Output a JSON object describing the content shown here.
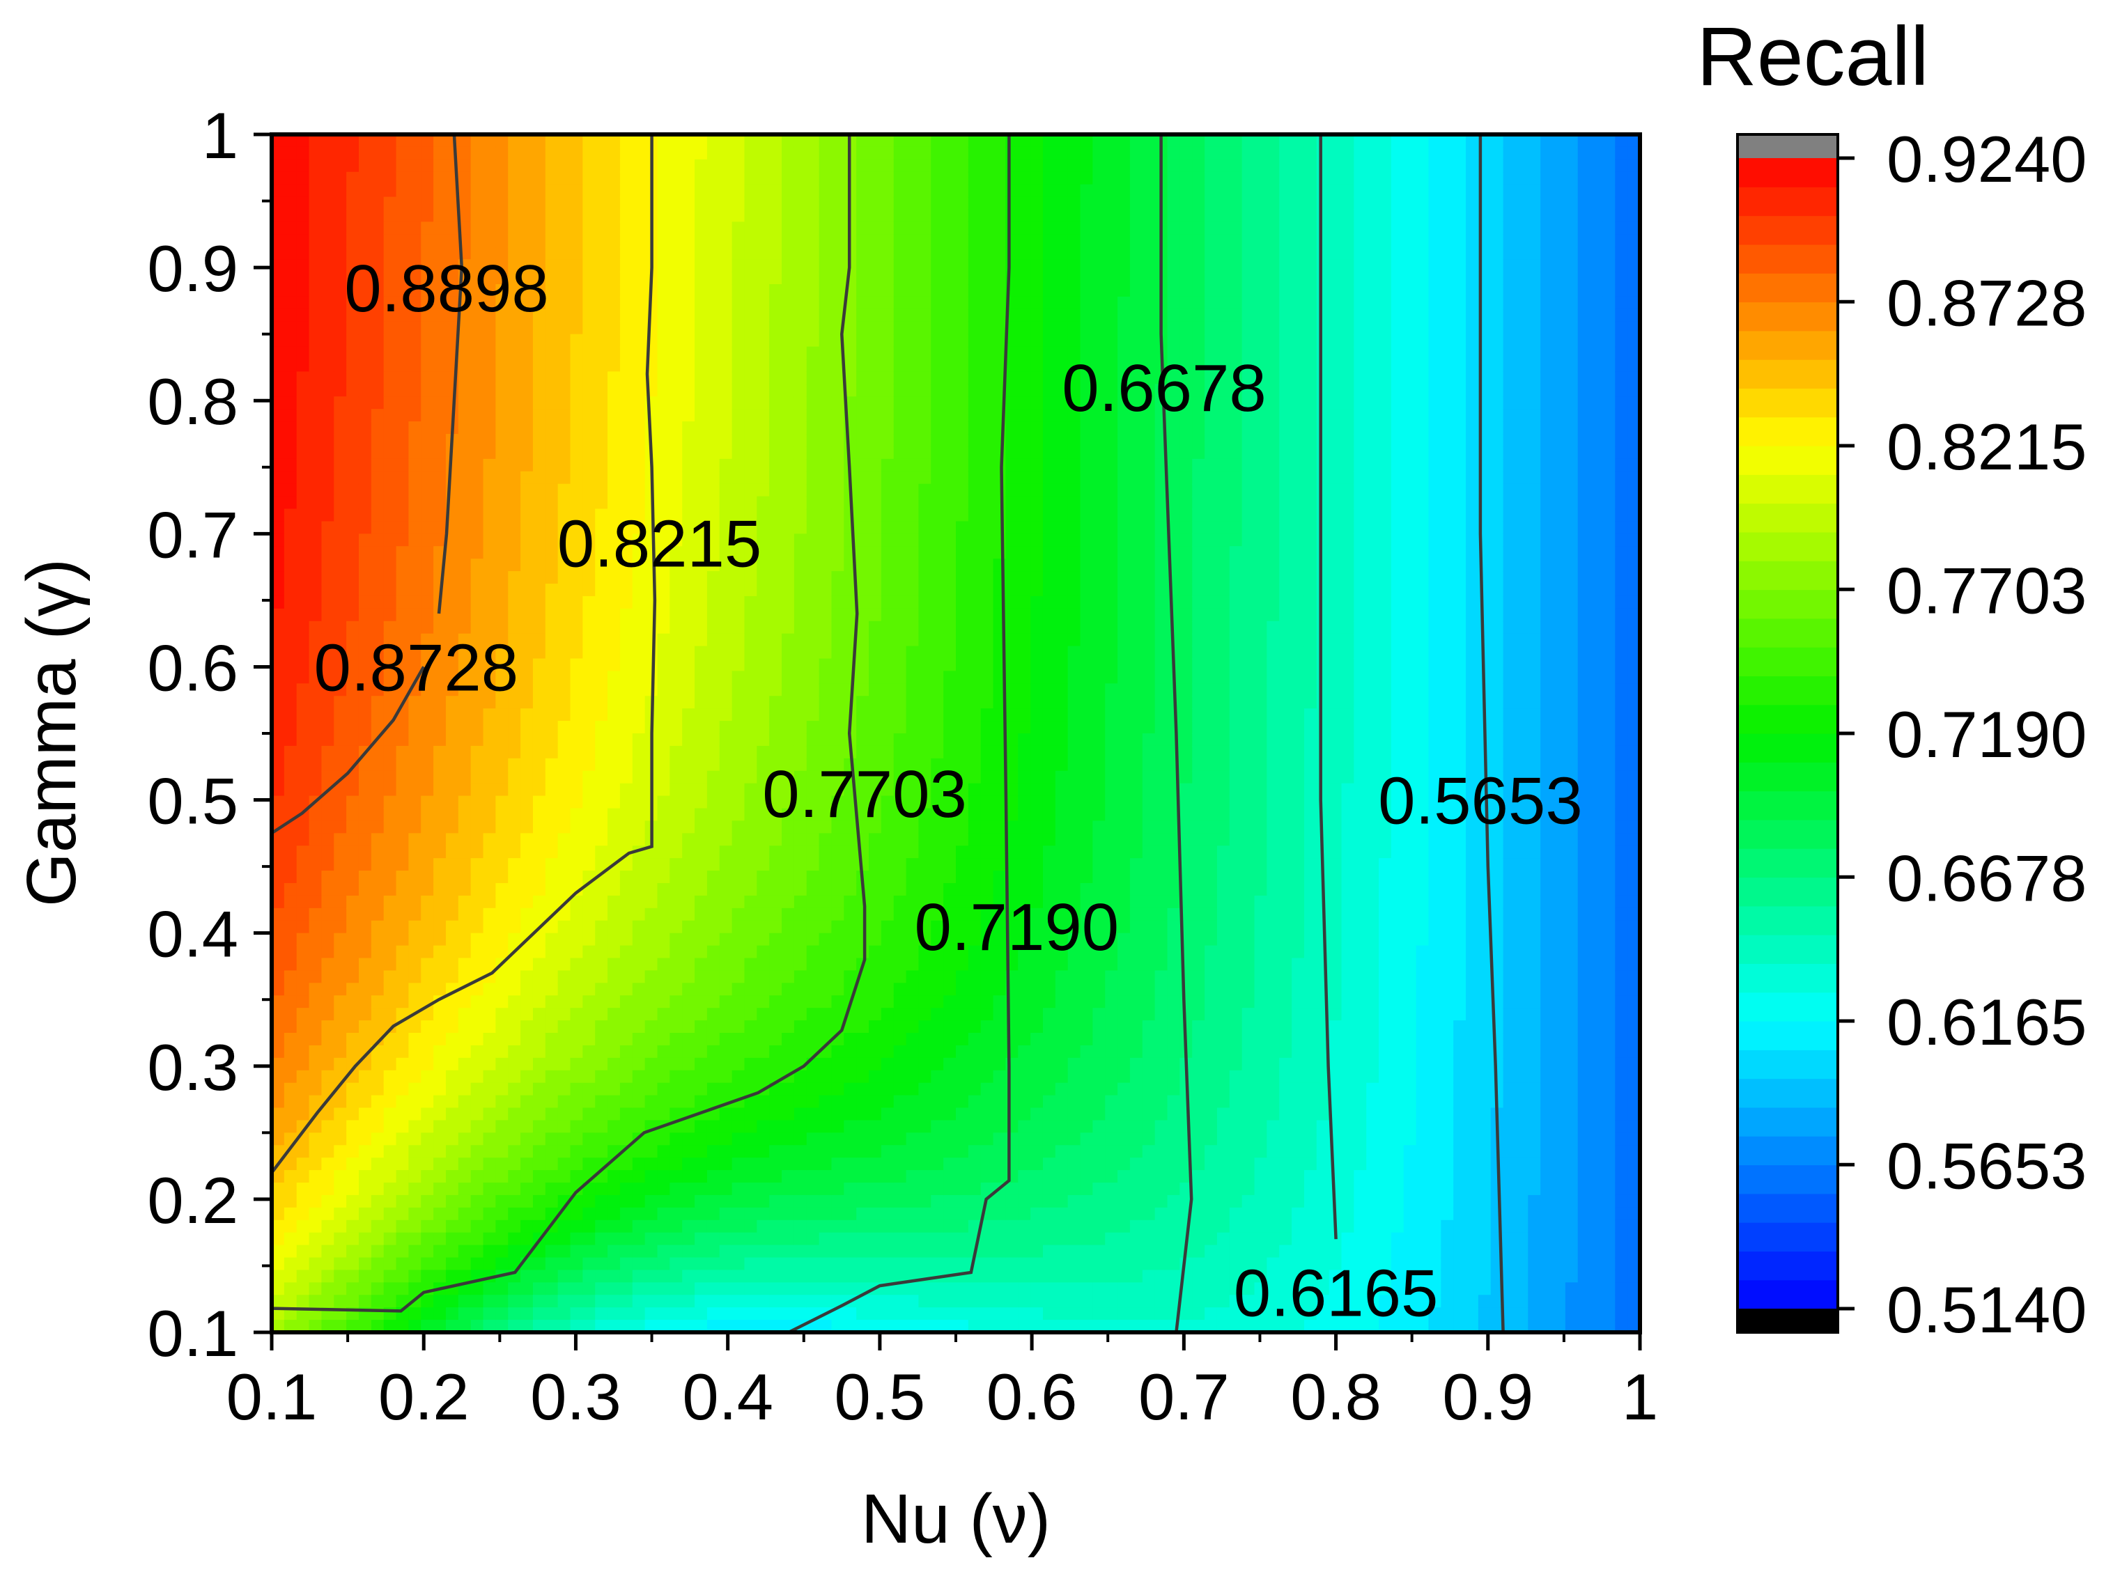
{
  "chart_data": {
    "type": "heatmap",
    "subtype": "filled-contour",
    "xlabel": "Nu (ν)",
    "ylabel": "Gamma (γ)",
    "xlim": [
      0.1,
      1
    ],
    "ylim": [
      0.1,
      1
    ],
    "x_ticks": [
      "0.1",
      "0.2",
      "0.3",
      "0.4",
      "0.5",
      "0.6",
      "0.7",
      "0.8",
      "0.9",
      "1"
    ],
    "y_ticks": [
      "0.1",
      "0.2",
      "0.3",
      "0.4",
      "0.5",
      "0.6",
      "0.7",
      "0.8",
      "0.9",
      "1"
    ],
    "colorbar": {
      "title": "Recall",
      "min": 0.514,
      "max": 0.924,
      "levels": 40,
      "colormap": "rainbow (blue → cyan → green → yellow → red)",
      "over_color": "#808080",
      "under_color": "#000000",
      "tick_labels": [
        "0.9240",
        "0.8728",
        "0.8215",
        "0.7703",
        "0.7190",
        "0.6678",
        "0.6165",
        "0.5653",
        "0.5140"
      ]
    },
    "contours": [
      {
        "label": "0.8898",
        "level": 0.8898,
        "points": [
          [
            0.22,
            1.0
          ],
          [
            0.225,
            0.9
          ],
          [
            0.22,
            0.8
          ],
          [
            0.215,
            0.7
          ],
          [
            0.21,
            0.64
          ]
        ]
      },
      {
        "label": "0.8728",
        "level": 0.8728,
        "points": [
          [
            0.1,
            0.475
          ],
          [
            0.12,
            0.49
          ],
          [
            0.15,
            0.52
          ],
          [
            0.18,
            0.56
          ],
          [
            0.2,
            0.6
          ]
        ]
      },
      {
        "label": "0.8215",
        "level": 0.8215,
        "points": [
          [
            0.1,
            0.22
          ],
          [
            0.13,
            0.265
          ],
          [
            0.155,
            0.3
          ],
          [
            0.18,
            0.33
          ],
          [
            0.21,
            0.35
          ],
          [
            0.245,
            0.37
          ],
          [
            0.3,
            0.43
          ],
          [
            0.335,
            0.46
          ],
          [
            0.35,
            0.465
          ],
          [
            0.35,
            0.55
          ],
          [
            0.352,
            0.65
          ],
          [
            0.35,
            0.75
          ],
          [
            0.347,
            0.82
          ],
          [
            0.35,
            0.9
          ],
          [
            0.35,
            1.0
          ]
        ]
      },
      {
        "label": "0.7703",
        "level": 0.7703,
        "points": [
          [
            0.1,
            0.118
          ],
          [
            0.185,
            0.116
          ],
          [
            0.2,
            0.13
          ],
          [
            0.26,
            0.145
          ],
          [
            0.3,
            0.205
          ],
          [
            0.345,
            0.25
          ],
          [
            0.42,
            0.28
          ],
          [
            0.45,
            0.3
          ],
          [
            0.475,
            0.327
          ],
          [
            0.49,
            0.38
          ],
          [
            0.49,
            0.42
          ],
          [
            0.48,
            0.55
          ],
          [
            0.485,
            0.64
          ],
          [
            0.48,
            0.75
          ],
          [
            0.475,
            0.85
          ],
          [
            0.48,
            0.9
          ],
          [
            0.48,
            1.0
          ]
        ]
      },
      {
        "label": "0.7190",
        "level": 0.719,
        "points": [
          [
            0.44,
            0.1
          ],
          [
            0.475,
            0.12
          ],
          [
            0.5,
            0.135
          ],
          [
            0.56,
            0.145
          ],
          [
            0.57,
            0.2
          ],
          [
            0.585,
            0.214
          ],
          [
            0.585,
            0.3
          ],
          [
            0.583,
            0.5
          ],
          [
            0.58,
            0.75
          ],
          [
            0.585,
            0.9
          ],
          [
            0.585,
            1.0
          ]
        ]
      },
      {
        "label": "0.6678",
        "level": 0.6678,
        "points": [
          [
            0.695,
            0.1
          ],
          [
            0.705,
            0.2
          ],
          [
            0.7,
            0.35
          ],
          [
            0.695,
            0.55
          ],
          [
            0.69,
            0.7
          ],
          [
            0.685,
            0.85
          ],
          [
            0.685,
            1.0
          ]
        ]
      },
      {
        "label": "0.6165",
        "level": 0.6165,
        "points": [
          [
            0.8,
            0.17
          ],
          [
            0.795,
            0.3
          ],
          [
            0.79,
            0.5
          ],
          [
            0.79,
            0.7
          ],
          [
            0.79,
            0.85
          ],
          [
            0.79,
            1.0
          ]
        ]
      },
      {
        "label": "0.5653",
        "level": 0.5653,
        "points": [
          [
            0.91,
            0.1
          ],
          [
            0.905,
            0.3
          ],
          [
            0.9,
            0.45
          ],
          [
            0.895,
            0.7
          ],
          [
            0.895,
            1.0
          ]
        ]
      }
    ],
    "contour_labels": [
      {
        "text": "0.8898",
        "x": 0.215,
        "y": 0.885
      },
      {
        "text": "0.8728",
        "x": 0.195,
        "y": 0.6
      },
      {
        "text": "0.8215",
        "x": 0.355,
        "y": 0.693
      },
      {
        "text": "0.7703",
        "x": 0.49,
        "y": 0.505
      },
      {
        "text": "0.7190",
        "x": 0.59,
        "y": 0.405
      },
      {
        "text": "0.6678",
        "x": 0.687,
        "y": 0.81
      },
      {
        "text": "0.6165",
        "x": 0.8,
        "y": 0.13
      },
      {
        "text": "0.5653",
        "x": 0.895,
        "y": 0.5
      }
    ]
  }
}
